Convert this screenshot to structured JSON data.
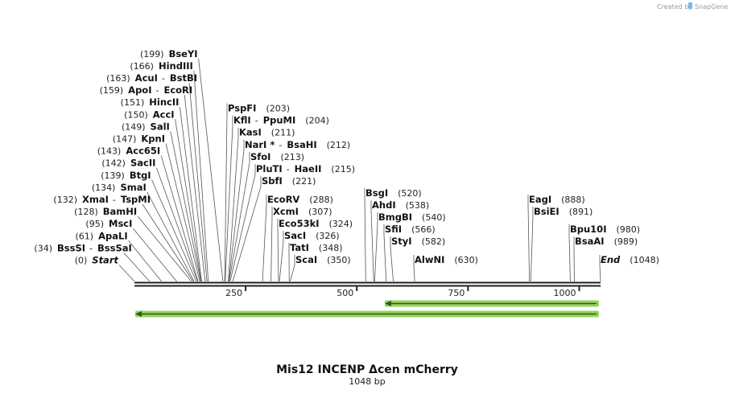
{
  "credit": {
    "prefix": "Created by",
    "brand": "SnapGene"
  },
  "sequence": {
    "name": "Mis12 INCENP Δcen mCherry",
    "length_label": "1048 bp",
    "length": 1048
  },
  "ruler": {
    "ticks": [
      {
        "value": 250,
        "label": "250"
      },
      {
        "value": 500,
        "label": "500"
      },
      {
        "value": 750,
        "label": "750"
      },
      {
        "value": 1000,
        "label": "1000"
      }
    ]
  },
  "features": [
    {
      "name": "feature-arrow-1",
      "start": 562,
      "end": 1048,
      "strand": "-",
      "color": "#96d35f"
    },
    {
      "name": "feature-arrow-2",
      "start": 1,
      "end": 1048,
      "strand": "-",
      "color": "#96d35f"
    }
  ],
  "sites": [
    {
      "pos": 0,
      "pos_label": "(0)",
      "names": [
        "Start"
      ],
      "italic": true,
      "side": "left"
    },
    {
      "pos": 34,
      "pos_label": "(34)",
      "names": [
        "BssSI",
        "BssSaI"
      ],
      "side": "left"
    },
    {
      "pos": 61,
      "pos_label": "(61)",
      "names": [
        "ApaLI"
      ],
      "side": "left"
    },
    {
      "pos": 95,
      "pos_label": "(95)",
      "names": [
        "MscI"
      ],
      "side": "left"
    },
    {
      "pos": 128,
      "pos_label": "(128)",
      "names": [
        "BamHI"
      ],
      "side": "left"
    },
    {
      "pos": 132,
      "pos_label": "(132)",
      "names": [
        "XmaI",
        "TspMI"
      ],
      "side": "left"
    },
    {
      "pos": 134,
      "pos_label": "(134)",
      "names": [
        "SmaI"
      ],
      "side": "left"
    },
    {
      "pos": 139,
      "pos_label": "(139)",
      "names": [
        "BtgI"
      ],
      "side": "left"
    },
    {
      "pos": 142,
      "pos_label": "(142)",
      "names": [
        "SacII"
      ],
      "side": "left"
    },
    {
      "pos": 143,
      "pos_label": "(143)",
      "names": [
        "Acc65I"
      ],
      "side": "left"
    },
    {
      "pos": 147,
      "pos_label": "(147)",
      "names": [
        "KpnI"
      ],
      "side": "left"
    },
    {
      "pos": 149,
      "pos_label": "(149)",
      "names": [
        "SalI"
      ],
      "side": "left"
    },
    {
      "pos": 150,
      "pos_label": "(150)",
      "names": [
        "AccI"
      ],
      "side": "left"
    },
    {
      "pos": 151,
      "pos_label": "(151)",
      "names": [
        "HincII"
      ],
      "side": "left"
    },
    {
      "pos": 159,
      "pos_label": "(159)",
      "names": [
        "ApoI",
        "EcoRI"
      ],
      "side": "left"
    },
    {
      "pos": 163,
      "pos_label": "(163)",
      "names": [
        "AcuI",
        "BstBI"
      ],
      "side": "left"
    },
    {
      "pos": 166,
      "pos_label": "(166)",
      "names": [
        "HindIII"
      ],
      "side": "left"
    },
    {
      "pos": 199,
      "pos_label": "(199)",
      "names": [
        "BseYI"
      ],
      "side": "left"
    },
    {
      "pos": 203,
      "pos_label": "(203)",
      "names": [
        "PspFI"
      ],
      "side": "right"
    },
    {
      "pos": 204,
      "pos_label": "(204)",
      "names": [
        "KflI",
        "PpuMI"
      ],
      "side": "right"
    },
    {
      "pos": 211,
      "pos_label": "(211)",
      "names": [
        "KasI"
      ],
      "side": "right"
    },
    {
      "pos": 212,
      "pos_label": "(212)",
      "names": [
        "NarI *",
        "BsaHI"
      ],
      "side": "right"
    },
    {
      "pos": 213,
      "pos_label": "(213)",
      "names": [
        "SfoI"
      ],
      "side": "right"
    },
    {
      "pos": 215,
      "pos_label": "(215)",
      "names": [
        "PluTI",
        "HaeII"
      ],
      "side": "right"
    },
    {
      "pos": 221,
      "pos_label": "(221)",
      "names": [
        "SbfI"
      ],
      "side": "right"
    },
    {
      "pos": 288,
      "pos_label": "(288)",
      "names": [
        "EcoRV"
      ],
      "side": "right"
    },
    {
      "pos": 307,
      "pos_label": "(307)",
      "names": [
        "XcmI"
      ],
      "side": "right"
    },
    {
      "pos": 324,
      "pos_label": "(324)",
      "names": [
        "Eco53kI"
      ],
      "side": "right"
    },
    {
      "pos": 326,
      "pos_label": "(326)",
      "names": [
        "SacI"
      ],
      "side": "right"
    },
    {
      "pos": 348,
      "pos_label": "(348)",
      "names": [
        "TatI"
      ],
      "side": "right"
    },
    {
      "pos": 350,
      "pos_label": "(350)",
      "names": [
        "ScaI"
      ],
      "side": "right"
    },
    {
      "pos": 520,
      "pos_label": "(520)",
      "names": [
        "BsgI"
      ],
      "side": "right"
    },
    {
      "pos": 538,
      "pos_label": "(538)",
      "names": [
        "AhdI"
      ],
      "side": "right"
    },
    {
      "pos": 540,
      "pos_label": "(540)",
      "names": [
        "BmgBI"
      ],
      "side": "right"
    },
    {
      "pos": 566,
      "pos_label": "(566)",
      "names": [
        "SfiI"
      ],
      "side": "right"
    },
    {
      "pos": 582,
      "pos_label": "(582)",
      "names": [
        "StyI"
      ],
      "side": "right"
    },
    {
      "pos": 630,
      "pos_label": "(630)",
      "names": [
        "AlwNI"
      ],
      "side": "right"
    },
    {
      "pos": 888,
      "pos_label": "(888)",
      "names": [
        "EagI"
      ],
      "side": "right"
    },
    {
      "pos": 891,
      "pos_label": "(891)",
      "names": [
        "BsiEI"
      ],
      "side": "right"
    },
    {
      "pos": 980,
      "pos_label": "(980)",
      "names": [
        "Bpu10I"
      ],
      "side": "right"
    },
    {
      "pos": 989,
      "pos_label": "(989)",
      "names": [
        "BsaAI"
      ],
      "side": "right"
    },
    {
      "pos": 1048,
      "pos_label": "(1048)",
      "names": [
        "End"
      ],
      "italic": true,
      "side": "right"
    }
  ]
}
